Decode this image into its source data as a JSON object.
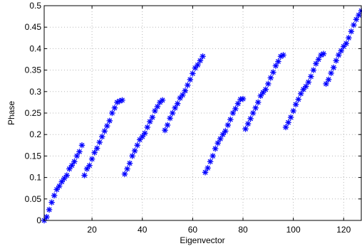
{
  "chart_data": {
    "type": "scatter",
    "title": "",
    "xlabel": "Eigenvector",
    "ylabel": "Phase",
    "xlim": [
      1,
      127
    ],
    "ylim": [
      0,
      0.5
    ],
    "x_ticks": [
      20,
      40,
      60,
      80,
      100,
      120
    ],
    "y_ticks": [
      0,
      0.05,
      0.1,
      0.15,
      0.2,
      0.25,
      0.3,
      0.35,
      0.4,
      0.45,
      0.5
    ],
    "x_tick_labels": [
      "20",
      "40",
      "60",
      "80",
      "100",
      "120"
    ],
    "y_tick_labels": [
      "0",
      "0.05",
      "0.1",
      "0.15",
      "0.2",
      "0.25",
      "0.3",
      "0.35",
      "0.4",
      "0.45",
      "0.5"
    ],
    "grid": true,
    "marker": "asterisk",
    "marker_color": "#0000ff",
    "series": [
      {
        "x": [
          1,
          2,
          3,
          4,
          5,
          6,
          7,
          8,
          9,
          10,
          11,
          12,
          13,
          14,
          15,
          16,
          17,
          18,
          19,
          20,
          21,
          22,
          23,
          24,
          25,
          26,
          27,
          28,
          29,
          30,
          31,
          32,
          33,
          34,
          35,
          36,
          37,
          38,
          39,
          40,
          41,
          42,
          43,
          44,
          45,
          46,
          47,
          48,
          49,
          50,
          51,
          52,
          53,
          54,
          55,
          56,
          57,
          58,
          59,
          60,
          61,
          62,
          63,
          64,
          65,
          66,
          67,
          68,
          69,
          70,
          71,
          72,
          73,
          74,
          75,
          76,
          77,
          78,
          79,
          80,
          81,
          82,
          83,
          84,
          85,
          86,
          87,
          88,
          89,
          90,
          91,
          92,
          93,
          94,
          95,
          96,
          97,
          98,
          99,
          100,
          101,
          102,
          103,
          104,
          105,
          106,
          107,
          108,
          109,
          110,
          111,
          112,
          113,
          114,
          115,
          116,
          117,
          118,
          119,
          120,
          121,
          122,
          123,
          124,
          125,
          126,
          127
        ],
        "y": [
          0,
          0.008,
          0.025,
          0.042,
          0.058,
          0.072,
          0.08,
          0.09,
          0.098,
          0.105,
          0.12,
          0.128,
          0.137,
          0.15,
          0.16,
          0.175,
          0.105,
          0.12,
          0.128,
          0.143,
          0.158,
          0.168,
          0.182,
          0.195,
          0.208,
          0.22,
          0.232,
          0.25,
          0.262,
          0.275,
          0.278,
          0.28,
          0.108,
          0.12,
          0.133,
          0.15,
          0.162,
          0.175,
          0.188,
          0.195,
          0.203,
          0.217,
          0.23,
          0.24,
          0.255,
          0.265,
          0.275,
          0.28,
          0.21,
          0.222,
          0.238,
          0.25,
          0.262,
          0.272,
          0.285,
          0.292,
          0.302,
          0.315,
          0.328,
          0.342,
          0.355,
          0.362,
          0.372,
          0.382,
          0.112,
          0.122,
          0.137,
          0.15,
          0.167,
          0.18,
          0.19,
          0.2,
          0.208,
          0.222,
          0.235,
          0.25,
          0.26,
          0.272,
          0.282,
          0.283,
          0.213,
          0.225,
          0.237,
          0.25,
          0.262,
          0.275,
          0.29,
          0.298,
          0.305,
          0.318,
          0.332,
          0.345,
          0.36,
          0.37,
          0.382,
          0.385,
          0.217,
          0.228,
          0.24,
          0.255,
          0.27,
          0.282,
          0.295,
          0.305,
          0.312,
          0.322,
          0.335,
          0.35,
          0.365,
          0.375,
          0.385,
          0.388,
          0.318,
          0.328,
          0.343,
          0.356,
          0.372,
          0.385,
          0.395,
          0.405,
          0.412,
          0.425,
          0.44,
          0.455,
          0.468,
          0.478,
          0.488
        ]
      }
    ]
  }
}
